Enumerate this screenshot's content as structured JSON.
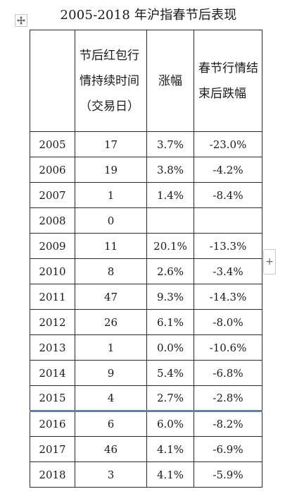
{
  "title": "2005-2018 年沪指春节后表现",
  "table": {
    "headers": [
      "",
      "节后红包行情持续时间（交易日）",
      "涨幅",
      "春节行情结束后跌幅"
    ],
    "rows": [
      [
        "2005",
        "17",
        "3.7%",
        "-23.0%"
      ],
      [
        "2006",
        "19",
        "3.8%",
        "-4.2%"
      ],
      [
        "2007",
        "1",
        "1.4%",
        "-8.4%"
      ],
      [
        "2008",
        "0",
        "",
        ""
      ],
      [
        "2009",
        "11",
        "20.1%",
        "-13.3%"
      ],
      [
        "2010",
        "8",
        "2.6%",
        "-3.4%"
      ],
      [
        "2011",
        "47",
        "9.3%",
        "-14.3%"
      ],
      [
        "2012",
        "26",
        "6.1%",
        "-8.0%"
      ],
      [
        "2013",
        "1",
        "0.0%",
        "-10.6%"
      ],
      [
        "2014",
        "9",
        "5.4%",
        "-6.8%"
      ],
      [
        "2015",
        "4",
        "2.7%",
        "-2.8%"
      ],
      [
        "2016",
        "6",
        "6.0%",
        "-8.2%"
      ],
      [
        "2017",
        "46",
        "4.1%",
        "-6.9%"
      ],
      [
        "2018",
        "3",
        "4.1%",
        "-5.9%"
      ]
    ]
  },
  "controls": {
    "move_icon": "move-arrows-icon",
    "add_row_label": "+"
  },
  "colors": {
    "border": "#2b2b2b",
    "selection_line": "#5b82b5"
  }
}
